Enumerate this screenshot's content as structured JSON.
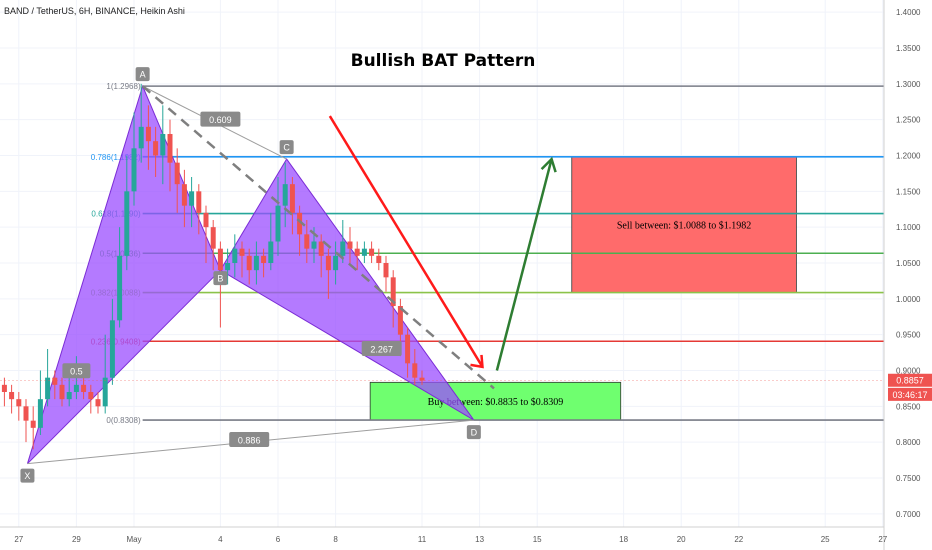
{
  "header": {
    "symbol": "BAND / TetherUS, 6H, BINANCE, Heikin Ashi"
  },
  "chart_data": {
    "type": "candlestick",
    "title": "Bullish BAT Pattern",
    "y_axis": {
      "range": [
        0.69,
        1.41
      ],
      "ticks": [
        "1.4000",
        "1.3500",
        "1.3000",
        "1.2500",
        "1.2000",
        "1.1500",
        "1.1000",
        "1.0500",
        "1.0000",
        "0.9500",
        "0.9000",
        "0.8500",
        "0.8000",
        "0.7500",
        "0.7000"
      ]
    },
    "x_axis": {
      "labels": [
        {
          "text": "27",
          "d": -3
        },
        {
          "text": "29",
          "d": -1
        },
        {
          "text": "May",
          "d": 1
        },
        {
          "text": "4",
          "d": 4
        },
        {
          "text": "6",
          "d": 6
        },
        {
          "text": "8",
          "d": 8
        },
        {
          "text": "11",
          "d": 11
        },
        {
          "text": "13",
          "d": 13
        },
        {
          "text": "15",
          "d": 15
        },
        {
          "text": "18",
          "d": 18
        },
        {
          "text": "20",
          "d": 20
        },
        {
          "text": "22",
          "d": 22
        },
        {
          "text": "25",
          "d": 25
        },
        {
          "text": "27",
          "d": 27
        }
      ]
    },
    "price_tags": [
      {
        "text": "0.8857",
        "price": 0.8857,
        "color": "#ef5350"
      },
      {
        "text": "03:46:17",
        "price": 0.866,
        "color": "#ef5350"
      }
    ],
    "fib_levels": [
      {
        "label": "1(1.2968)",
        "price": 1.2968,
        "color": "#787b86"
      },
      {
        "label": "0.786(1.1982)",
        "price": 1.1982,
        "color": "#2196f3"
      },
      {
        "label": "0.618(1.1190)",
        "price": 1.119,
        "color": "#26a69a"
      },
      {
        "label": "0.5(1.0636)",
        "price": 1.0636,
        "color": "#4caf50"
      },
      {
        "label": "0.382(1.0088)",
        "price": 1.0088,
        "color": "#8bc34a"
      },
      {
        "label": "0.236(0.9408)",
        "price": 0.9408,
        "color": "#e53935"
      },
      {
        "label": "0(0.8308)",
        "price": 0.8308,
        "color": "#787b86"
      }
    ],
    "pattern_points": [
      {
        "name": "X",
        "d": -2.7,
        "price": 0.77
      },
      {
        "name": "A",
        "d": 1.3,
        "price": 1.2968
      },
      {
        "name": "B",
        "d": 4.0,
        "price": 1.04
      },
      {
        "name": "C",
        "d": 6.3,
        "price": 1.195
      },
      {
        "name": "D",
        "d": 12.8,
        "price": 0.8308
      }
    ],
    "ratio_labels": [
      {
        "text": "0.609",
        "d": 4.0,
        "price": 1.25
      },
      {
        "text": "2.267",
        "d": 9.6,
        "price": 0.93
      },
      {
        "text": "0.5",
        "d": -1.0,
        "price": 0.899
      },
      {
        "text": "0.886",
        "d": 5.0,
        "price": 0.803
      }
    ],
    "zones": [
      {
        "label": "Sell between: $1.0088 to $1.1982",
        "d_start": 16.2,
        "d_end": 24.0,
        "top": 1.1982,
        "bottom": 1.0088,
        "color": "#ff6b6b"
      },
      {
        "label": "Buy between: $0.8835 to $0.8309",
        "d_start": 9.2,
        "d_end": 17.9,
        "top": 0.8835,
        "bottom": 0.8309,
        "color": "#6fff6f"
      }
    ],
    "candles": [
      [
        -4.0,
        0.88,
        0.89,
        0.9,
        0.87
      ],
      [
        -3.75,
        0.89,
        0.88,
        0.9,
        0.86
      ],
      [
        -3.5,
        0.88,
        0.87,
        0.89,
        0.85
      ],
      [
        -3.25,
        0.87,
        0.86,
        0.88,
        0.84
      ],
      [
        -3.0,
        0.86,
        0.85,
        0.87,
        0.83
      ],
      [
        -2.75,
        0.85,
        0.83,
        0.86,
        0.8
      ],
      [
        -2.5,
        0.83,
        0.82,
        0.85,
        0.79
      ],
      [
        -2.25,
        0.82,
        0.86,
        0.9,
        0.81
      ],
      [
        -2.0,
        0.86,
        0.89,
        0.93,
        0.85
      ],
      [
        -1.75,
        0.89,
        0.88,
        0.9,
        0.86
      ],
      [
        -1.5,
        0.88,
        0.86,
        0.89,
        0.85
      ],
      [
        -1.25,
        0.86,
        0.87,
        0.9,
        0.85
      ],
      [
        -1.0,
        0.87,
        0.88,
        0.92,
        0.86
      ],
      [
        -0.75,
        0.88,
        0.87,
        0.89,
        0.86
      ],
      [
        -0.5,
        0.87,
        0.86,
        0.88,
        0.84
      ],
      [
        -0.25,
        0.86,
        0.85,
        0.87,
        0.84
      ],
      [
        0.0,
        0.85,
        0.89,
        0.95,
        0.84
      ],
      [
        0.25,
        0.89,
        0.97,
        1.0,
        0.88
      ],
      [
        0.5,
        0.97,
        1.06,
        1.1,
        0.96
      ],
      [
        0.75,
        1.06,
        1.15,
        1.2,
        1.04
      ],
      [
        1.0,
        1.15,
        1.21,
        1.26,
        1.13
      ],
      [
        1.25,
        1.21,
        1.24,
        1.3,
        1.19
      ],
      [
        1.5,
        1.24,
        1.22,
        1.27,
        1.18
      ],
      [
        1.75,
        1.22,
        1.2,
        1.24,
        1.17
      ],
      [
        2.0,
        1.2,
        1.23,
        1.27,
        1.16
      ],
      [
        2.25,
        1.23,
        1.19,
        1.25,
        1.15
      ],
      [
        2.5,
        1.19,
        1.16,
        1.21,
        1.12
      ],
      [
        2.75,
        1.16,
        1.13,
        1.18,
        1.1
      ],
      [
        3.0,
        1.13,
        1.15,
        1.17,
        1.1
      ],
      [
        3.25,
        1.15,
        1.12,
        1.16,
        1.09
      ],
      [
        3.5,
        1.12,
        1.1,
        1.13,
        1.05
      ],
      [
        3.75,
        1.1,
        1.07,
        1.11,
        1.04
      ],
      [
        4.0,
        1.07,
        1.04,
        1.08,
        0.96
      ],
      [
        4.25,
        1.04,
        1.05,
        1.07,
        1.02
      ],
      [
        4.5,
        1.05,
        1.07,
        1.09,
        1.03
      ],
      [
        4.75,
        1.07,
        1.06,
        1.08,
        1.03
      ],
      [
        5.0,
        1.06,
        1.04,
        1.07,
        1.02
      ],
      [
        5.25,
        1.04,
        1.06,
        1.08,
        1.02
      ],
      [
        5.5,
        1.06,
        1.05,
        1.07,
        1.03
      ],
      [
        5.75,
        1.05,
        1.08,
        1.12,
        1.04
      ],
      [
        6.0,
        1.08,
        1.13,
        1.17,
        1.06
      ],
      [
        6.25,
        1.13,
        1.16,
        1.19,
        1.1
      ],
      [
        6.5,
        1.16,
        1.12,
        1.17,
        1.09
      ],
      [
        6.75,
        1.12,
        1.09,
        1.13,
        1.06
      ],
      [
        7.0,
        1.09,
        1.07,
        1.11,
        1.05
      ],
      [
        7.25,
        1.07,
        1.08,
        1.1,
        1.05
      ],
      [
        7.5,
        1.08,
        1.06,
        1.09,
        1.03
      ],
      [
        7.75,
        1.06,
        1.04,
        1.07,
        1.0
      ],
      [
        8.0,
        1.04,
        1.06,
        1.08,
        1.02
      ],
      [
        8.25,
        1.06,
        1.08,
        1.11,
        1.05
      ],
      [
        8.5,
        1.08,
        1.07,
        1.1,
        1.05
      ],
      [
        8.75,
        1.07,
        1.06,
        1.08,
        1.04
      ],
      [
        9.0,
        1.06,
        1.07,
        1.08,
        1.05
      ],
      [
        9.25,
        1.07,
        1.06,
        1.08,
        1.05
      ],
      [
        9.5,
        1.06,
        1.05,
        1.07,
        1.04
      ],
      [
        9.75,
        1.05,
        1.03,
        1.06,
        1.01
      ],
      [
        10.0,
        1.03,
        0.99,
        1.04,
        0.96
      ],
      [
        10.25,
        0.99,
        0.95,
        1.0,
        0.92
      ],
      [
        10.5,
        0.95,
        0.91,
        0.96,
        0.89
      ],
      [
        10.75,
        0.91,
        0.89,
        0.93,
        0.88
      ],
      [
        11.0,
        0.89,
        0.886,
        0.9,
        0.88
      ]
    ]
  }
}
